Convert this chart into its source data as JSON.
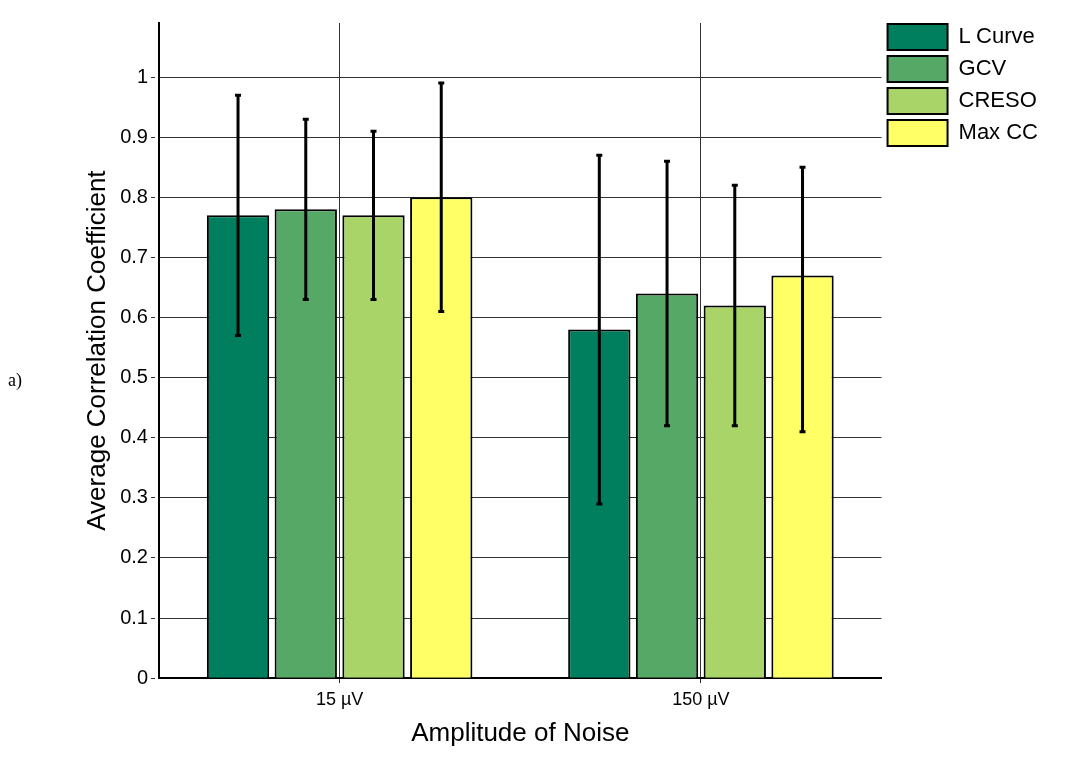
{
  "chart_data": {
    "type": "bar",
    "xlabel": "Amplitude of Noise",
    "ylabel": "Average Correlation Coefficient",
    "categories": [
      "15 µV",
      "150 µV"
    ],
    "series": [
      {
        "name": "L Curve",
        "color": "#007f5f",
        "values": [
          0.77,
          0.58
        ],
        "errors": [
          [
            0.57,
            0.97
          ],
          [
            0.29,
            0.87
          ]
        ]
      },
      {
        "name": "GCV",
        "color": "#56a866",
        "values": [
          0.78,
          0.64
        ],
        "errors": [
          [
            0.63,
            0.93
          ],
          [
            0.42,
            0.86
          ]
        ]
      },
      {
        "name": "CRESO",
        "color": "#a8d468",
        "values": [
          0.77,
          0.62
        ],
        "errors": [
          [
            0.63,
            0.91
          ],
          [
            0.42,
            0.82
          ]
        ]
      },
      {
        "name": "Max CC",
        "color": "#ffff66",
        "values": [
          0.8,
          0.67
        ],
        "errors": [
          [
            0.61,
            0.99
          ],
          [
            0.41,
            0.85
          ]
        ]
      }
    ],
    "ylim": [
      0,
      1.09
    ],
    "yticks": [
      0,
      0.1,
      0.2,
      0.3,
      0.4,
      0.5,
      0.6,
      0.7,
      0.8,
      0.9,
      1
    ],
    "grid": true,
    "legend": "top right",
    "annotations": [
      "a)"
    ]
  }
}
